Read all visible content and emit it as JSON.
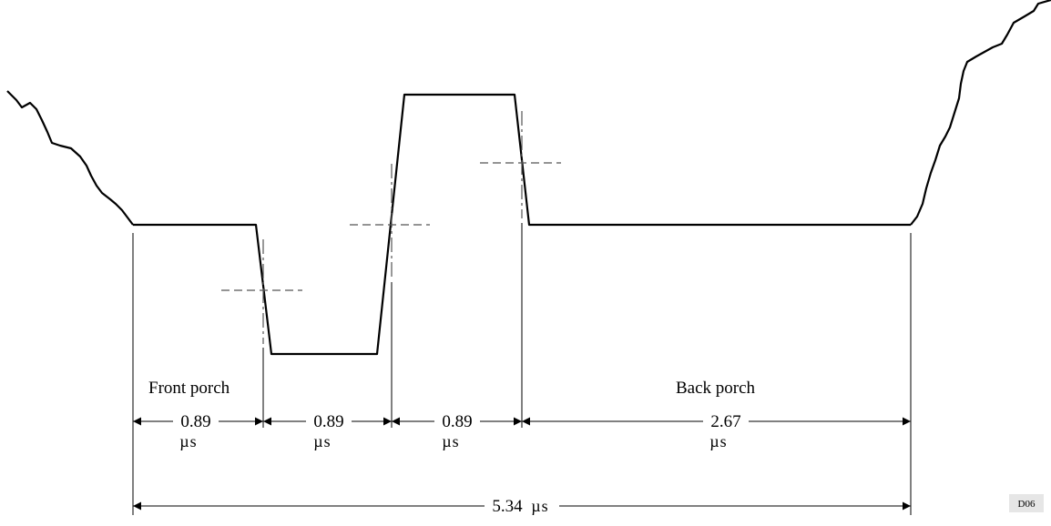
{
  "labels": {
    "front_porch": "Front porch",
    "back_porch": "Back porch"
  },
  "segments": [
    {
      "value": "0.89",
      "unit": "µs"
    },
    {
      "value": "0.89",
      "unit": "µs"
    },
    {
      "value": "0.89",
      "unit": "µs"
    },
    {
      "value": "2.67",
      "unit": "µs"
    }
  ],
  "total": {
    "value": "5.34",
    "unit": "µs"
  },
  "figure_code": "D06",
  "colors": {
    "line": "#000000",
    "dashed": "#555555",
    "tag_bg": "#e6e6e6"
  }
}
